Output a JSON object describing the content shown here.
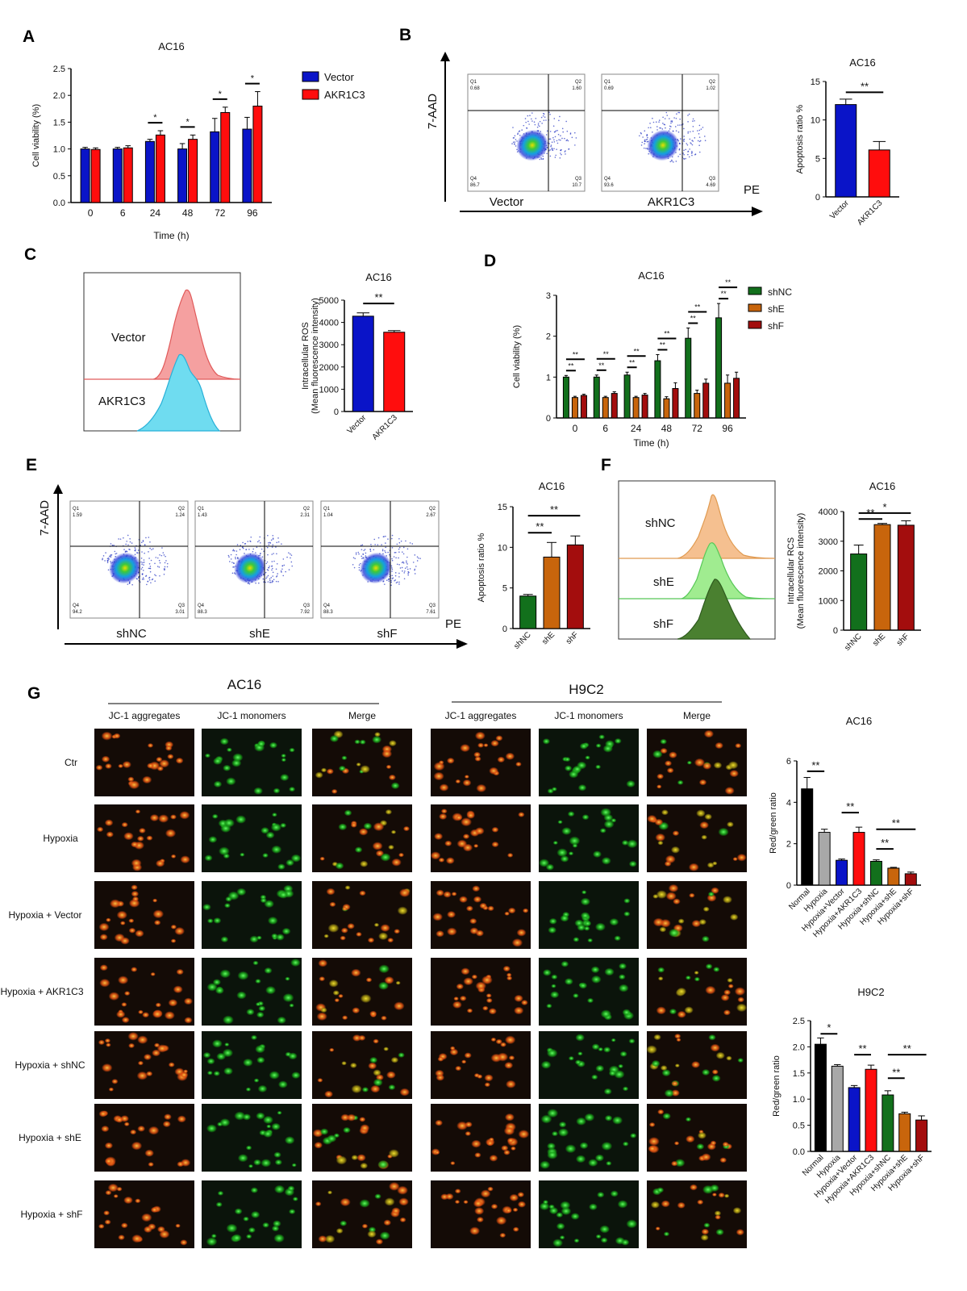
{
  "colors": {
    "blue": "#0a14c8",
    "red": "#ff0d0d",
    "green": "#12701c",
    "orange": "#c8650c",
    "darkred": "#a30d0d",
    "gray": "#a8a8a8",
    "black": "#000000"
  },
  "panels": {
    "A": {
      "letter": "A",
      "chart_data": {
        "type": "bar",
        "title": "AC16",
        "xlabel": "Time (h)",
        "ylabel": "Cell viability  (%)",
        "ylim": [
          0,
          2.5
        ],
        "yticks": [
          "0.0",
          "0.5",
          "1.0",
          "1.5",
          "2.0",
          "2.5"
        ],
        "categories": [
          "0",
          "6",
          "24",
          "48",
          "72",
          "96"
        ],
        "series": [
          {
            "name": "Vector",
            "color": "#0a14c8",
            "values": [
              1.0,
              1.0,
              1.14,
              1.0,
              1.32,
              1.37
            ],
            "errors": [
              0.03,
              0.03,
              0.04,
              0.1,
              0.25,
              0.22
            ]
          },
          {
            "name": "AKR1C3",
            "color": "#ff0d0d",
            "values": [
              0.99,
              1.02,
              1.26,
              1.18,
              1.68,
              1.8
            ],
            "errors": [
              0.03,
              0.04,
              0.08,
              0.08,
              0.1,
              0.27
            ]
          }
        ],
        "annotations": [
          "*",
          "*",
          "*",
          "*"
        ],
        "legend": "top-right"
      }
    },
    "B": {
      "letter": "B",
      "axis_y": "7-AAD",
      "axis_x": "PE",
      "plots": [
        {
          "label": "Vector",
          "q": [
            "Q1",
            "Q2",
            "Q4",
            "Q3"
          ],
          "v": [
            "0.68",
            "1.60",
            "86.7",
            "10.7"
          ]
        },
        {
          "label": "AKR1C3",
          "q": [
            "Q1",
            "Q2",
            "Q4",
            "Q3"
          ],
          "v": [
            "0.69",
            "1.02",
            "93.6",
            "4.69"
          ]
        }
      ],
      "chart_data": {
        "type": "bar",
        "title": "AC16",
        "ylabel": "Apoptosis ratio %",
        "ylim": [
          0,
          15
        ],
        "yticks": [
          "0",
          "5",
          "10",
          "15"
        ],
        "categories": [
          "Vector",
          "AKR1C3"
        ],
        "values": [
          12.0,
          6.1
        ],
        "errors": [
          0.7,
          1.1
        ],
        "colors": [
          "#0a14c8",
          "#ff0d0d"
        ],
        "annotations": [
          "**"
        ]
      }
    },
    "C": {
      "letter": "C",
      "histograms": [
        "Vector",
        "AKR1C3"
      ],
      "chart_data": {
        "type": "bar",
        "title": "AC16",
        "ylabel": "Intracellular ROS",
        "ylabel2": "(Mean fluorescence intensity)",
        "ylim": [
          0,
          5000
        ],
        "yticks": [
          "0",
          "1000",
          "2000",
          "3000",
          "4000",
          "5000"
        ],
        "categories": [
          "Vector",
          "AKR1C3"
        ],
        "values": [
          4280,
          3560
        ],
        "errors": [
          150,
          70
        ],
        "colors": [
          "#0a14c8",
          "#ff0d0d"
        ],
        "annotations": [
          "**"
        ]
      }
    },
    "D": {
      "letter": "D",
      "chart_data": {
        "type": "bar",
        "title": "AC16",
        "xlabel": "Time (h)",
        "ylabel": "Cell viability  (%)",
        "ylim": [
          0,
          3
        ],
        "yticks": [
          "0",
          "1",
          "2",
          "3"
        ],
        "categories": [
          "0",
          "6",
          "24",
          "48",
          "72",
          "96"
        ],
        "series": [
          {
            "name": "shNC",
            "color": "#12701c",
            "values": [
              1.0,
              1.0,
              1.05,
              1.4,
              1.95,
              2.45
            ],
            "errors": [
              0.04,
              0.05,
              0.07,
              0.15,
              0.25,
              0.35
            ]
          },
          {
            "name": "shE",
            "color": "#c8650c",
            "values": [
              0.5,
              0.5,
              0.5,
              0.47,
              0.6,
              0.85
            ],
            "errors": [
              0.03,
              0.03,
              0.03,
              0.05,
              0.08,
              0.2
            ]
          },
          {
            "name": "shF",
            "color": "#a30d0d",
            "values": [
              0.55,
              0.6,
              0.56,
              0.72,
              0.85,
              0.97
            ],
            "errors": [
              0.03,
              0.04,
              0.04,
              0.14,
              0.1,
              0.15
            ]
          }
        ],
        "annotations": [
          "**",
          "**",
          "**",
          "**",
          "**",
          "**",
          "**",
          "**",
          "**",
          "**",
          "**",
          "**"
        ],
        "legend": "top-right"
      }
    },
    "E": {
      "letter": "E",
      "axis_y": "7-AAD",
      "axis_x": "PE",
      "plots": [
        {
          "label": "shNC",
          "q": [
            "Q1",
            "Q2",
            "Q4",
            "Q3"
          ],
          "v": [
            "1.59",
            "1.24",
            "94.2",
            "3.01"
          ]
        },
        {
          "label": "shE",
          "q": [
            "Q1",
            "Q2",
            "Q4",
            "Q3"
          ],
          "v": [
            "1.43",
            "2.31",
            "88.3",
            "7.92"
          ]
        },
        {
          "label": "shF",
          "q": [
            "Q1",
            "Q2",
            "Q4",
            "Q3"
          ],
          "v": [
            "1.04",
            "2.67",
            "88.3",
            "7.61"
          ]
        }
      ],
      "chart_data": {
        "type": "bar",
        "title": "AC16",
        "ylabel": "Apoptosis ratio %",
        "ylim": [
          0,
          15
        ],
        "yticks": [
          "0",
          "5",
          "10",
          "15"
        ],
        "categories": [
          "shNC",
          "shE",
          "shF"
        ],
        "values": [
          4.0,
          8.8,
          10.3
        ],
        "errors": [
          0.2,
          1.8,
          1.1
        ],
        "colors": [
          "#12701c",
          "#c8650c",
          "#a30d0d"
        ],
        "annotations": [
          "**",
          "**"
        ]
      }
    },
    "F": {
      "letter": "F",
      "histograms": [
        "shNC",
        "shE",
        "shF"
      ],
      "chart_data": {
        "type": "bar",
        "title": "AC16",
        "ylabel": "Intracellular RCS",
        "ylabel2": "(Mean fluorescence intensity)",
        "ylim": [
          0,
          4000
        ],
        "yticks": [
          "0",
          "1000",
          "2000",
          "3000",
          "4000"
        ],
        "categories": [
          "shNC",
          "shE",
          "shF"
        ],
        "values": [
          2570,
          3560,
          3540
        ],
        "errors": [
          300,
          40,
          150
        ],
        "colors": [
          "#12701c",
          "#c8650c",
          "#a30d0d"
        ],
        "annotations": [
          "**",
          "*"
        ]
      }
    },
    "G": {
      "letter": "G",
      "group1": "AC16",
      "group2": "H9C2",
      "columns": [
        "JC-1 aggregates",
        "JC-1 monomers",
        "Merge"
      ],
      "rows": [
        "Ctr",
        "Hypoxia",
        "Hypoxia + Vector",
        "Hypoxia + AKR1C3",
        "Hypoxia + shNC",
        "Hypoxia + shE",
        "Hypoxia + shF"
      ],
      "charts": [
        {
          "type": "bar",
          "title": "AC16",
          "ylabel": "Red/green ratio",
          "ylim": [
            0,
            6
          ],
          "yticks": [
            "0",
            "2",
            "4",
            "6"
          ],
          "categories": [
            "Normal",
            "Hypoxia",
            "Hypoxia+Vector",
            "Hypoxia+AKR1C3",
            "Hypoxia+shNC",
            "Hypoxia+shE",
            "Hypoxia+shF"
          ],
          "values": [
            4.65,
            2.55,
            1.2,
            2.55,
            1.15,
            0.82,
            0.55
          ],
          "errors": [
            0.55,
            0.15,
            0.06,
            0.25,
            0.07,
            0.04,
            0.08
          ],
          "colors": [
            "#000000",
            "#a8a8a8",
            "#0a14c8",
            "#ff0d0d",
            "#12701c",
            "#c8650c",
            "#a30d0d"
          ],
          "annotations": [
            "**",
            "**",
            "**",
            "**"
          ]
        },
        {
          "type": "bar",
          "title": "H9C2",
          "ylabel": "Red/green ratio",
          "ylim": [
            0,
            2.5
          ],
          "yticks": [
            "0.0",
            "0.5",
            "1.0",
            "1.5",
            "2.0",
            "2.5"
          ],
          "categories": [
            "Normal",
            "Hypoxia",
            "Hypoxia+Vector",
            "Hypoxia+AKR1C3",
            "Hypoxia+shNC",
            "Hypoxia+shE",
            "Hypoxia+shF"
          ],
          "values": [
            2.05,
            1.63,
            1.22,
            1.57,
            1.08,
            0.72,
            0.6
          ],
          "errors": [
            0.12,
            0.03,
            0.04,
            0.08,
            0.08,
            0.03,
            0.08
          ],
          "colors": [
            "#000000",
            "#a8a8a8",
            "#0a14c8",
            "#ff0d0d",
            "#12701c",
            "#c8650c",
            "#a30d0d"
          ],
          "annotations": [
            "*",
            "**",
            "**",
            "**"
          ]
        }
      ]
    }
  }
}
